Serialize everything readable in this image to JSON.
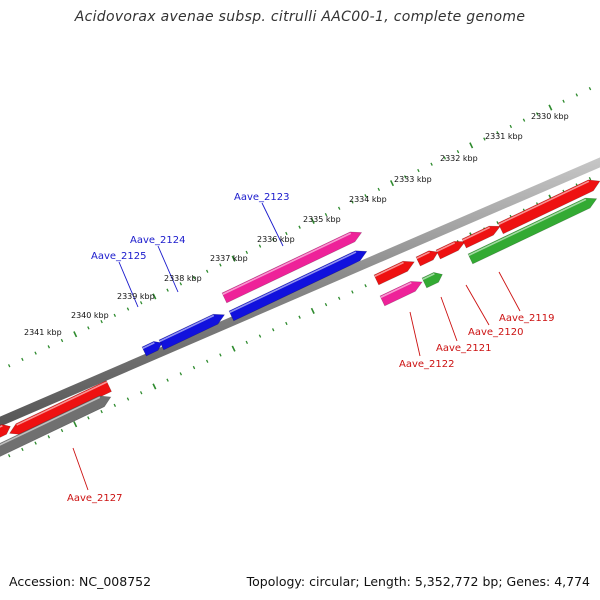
{
  "title": "Acidovorax avenae subsp. citrulli AAC00-1, complete genome",
  "footer": {
    "accession": "Accession: NC_008752",
    "topology": "Topology: circular; Length: 5,352,772 bp; Genes: 4,774"
  },
  "colors": {
    "backbone": "#7f7f7f",
    "ticks": "#2e8b2e",
    "forward_gene": "#ee1111",
    "pink_gene": "#ee2299",
    "blue_gene": "#1111dd",
    "green_gene": "#33aa33",
    "gray_gene": "#707070",
    "label_blue": "#1a1acc",
    "label_red": "#cc1111"
  },
  "kbp_ticks": [
    "2330 kbp",
    "2331 kbp",
    "2332 kbp",
    "2333 kbp",
    "2334 kbp",
    "2335 kbp",
    "2336 kbp",
    "2337 kbp",
    "2338 kbp",
    "2339 kbp",
    "2340 kbp",
    "2341 kbp"
  ],
  "gene_labels": [
    {
      "id": "aave2123",
      "text": "Aave_2123",
      "color": "blue"
    },
    {
      "id": "aave2124",
      "text": "Aave_2124",
      "color": "blue"
    },
    {
      "id": "aave2125",
      "text": "Aave_2125",
      "color": "blue"
    },
    {
      "id": "aave2119",
      "text": "Aave_2119",
      "color": "red"
    },
    {
      "id": "aave2120",
      "text": "Aave_2120",
      "color": "red"
    },
    {
      "id": "aave2121",
      "text": "Aave_2121",
      "color": "red"
    },
    {
      "id": "aave2122",
      "text": "Aave_2122",
      "color": "red"
    },
    {
      "id": "aave2127",
      "text": "Aave_2127",
      "color": "red"
    }
  ]
}
